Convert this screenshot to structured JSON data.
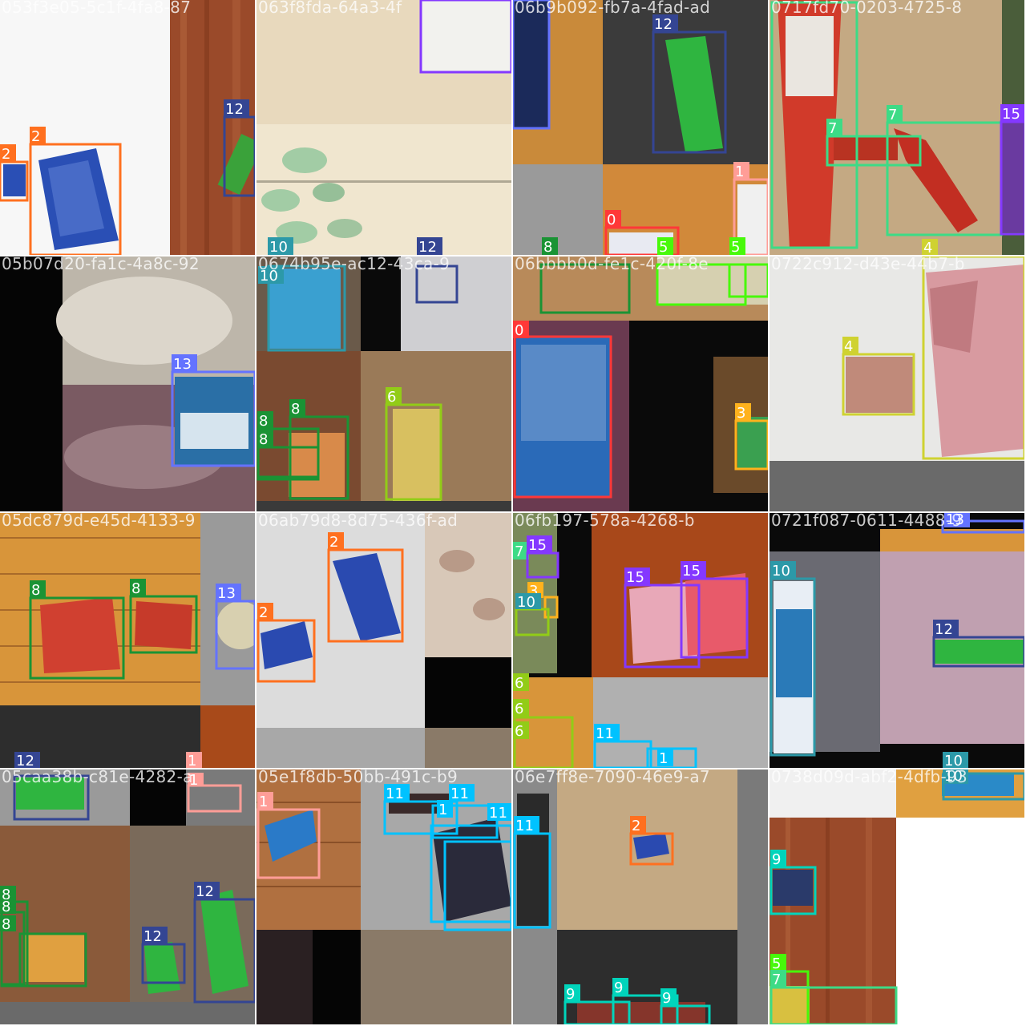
{
  "colors": {
    "0": "#ff3838",
    "1": "#ff9d97",
    "2": "#ff701f",
    "3": "#ffb21d",
    "4": "#cfd231",
    "5": "#48f90a",
    "6": "#92cc17",
    "7": "#3ddb86",
    "8": "#1a9334",
    "9": "#00d4bb",
    "10": "#2c99a8",
    "11": "#00c2ff",
    "12": "#344593",
    "13": "#6473ff",
    "15": "#8438ff"
  },
  "tiles": [
    {
      "caption": "053f3e05-5c1f-4fa8-87",
      "labels": [
        "2",
        "2",
        "12"
      ]
    },
    {
      "caption": "063f8fda-64a3-4f",
      "labels": [
        "10",
        "12"
      ]
    },
    {
      "caption": "06b9b092-fb7a-4fad-ad",
      "labels": [
        "12",
        "1",
        "0",
        "8",
        "5",
        "5"
      ]
    },
    {
      "caption": "0717fd70-0203-4725-8",
      "labels": [
        "7",
        "7",
        "15",
        "4"
      ]
    },
    {
      "caption": "05b07d20-fa1c-4a8c-92",
      "labels": [
        "13"
      ]
    },
    {
      "caption": "0674b95e-ac12-43ca-9",
      "labels": [
        "10",
        "8",
        "8",
        "8",
        "6"
      ]
    },
    {
      "caption": "06bbbb0d-fe1c-420f-8e",
      "labels": [
        "0",
        "3"
      ]
    },
    {
      "caption": "0722c912-d43e-44b7-b",
      "labels": [
        "4"
      ]
    },
    {
      "caption": "05dc879d-e45d-4133-9",
      "labels": [
        "8",
        "8",
        "13",
        "12",
        "1"
      ]
    },
    {
      "caption": "06ab79d8-8d75-436f-ad",
      "labels": [
        "2",
        "2"
      ]
    },
    {
      "caption": "06fb197-578a-4268-b",
      "labels": [
        "7",
        "15",
        "3",
        "10",
        "15",
        "15",
        "6",
        "6",
        "6",
        "11",
        "1"
      ]
    },
    {
      "caption": "0721f087-0611-4488-9",
      "labels": [
        "13",
        "10",
        "12",
        "10"
      ]
    },
    {
      "caption": "05caa38b-c81e-4282-a",
      "labels": [
        "1",
        "8",
        "8",
        "8",
        "12",
        "12"
      ]
    },
    {
      "caption": "05e1f8db-50bb-491c-b9",
      "labels": [
        "1",
        "11",
        "11",
        "1",
        "11"
      ]
    },
    {
      "caption": "06e7ff8e-7090-46e9-a7",
      "labels": [
        "2",
        "11",
        "9",
        "9",
        "9"
      ]
    },
    {
      "caption": "0738d09d-abf2-4dfb-93",
      "labels": [
        "9",
        "5",
        "7",
        "10"
      ]
    }
  ]
}
